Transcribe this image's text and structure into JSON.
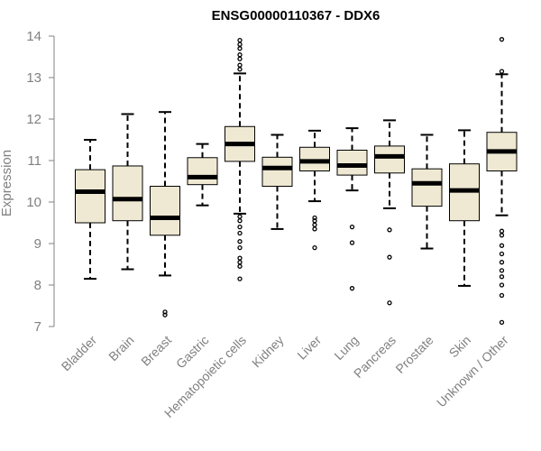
{
  "chart_data": {
    "type": "boxplot",
    "title": "ENSG00000110367 - DDX6",
    "xlabel": "",
    "ylabel": "Expression",
    "ylim": [
      7,
      14
    ],
    "yticks": [
      7,
      8,
      9,
      10,
      11,
      12,
      13,
      14
    ],
    "grid": false,
    "colors": {
      "box_fill": "#efe9d3",
      "box_stroke": "#000000",
      "axis": "#808080"
    },
    "categories": [
      "Bladder",
      "Brain",
      "Breast",
      "Gastric",
      "Hematopoietic cells",
      "Kidney",
      "Liver",
      "Lung",
      "Pancreas",
      "Prostate",
      "Skin",
      "Unknown / Other"
    ],
    "boxes": [
      {
        "name": "Bladder",
        "whisker_low": 8.15,
        "q1": 9.5,
        "median": 10.25,
        "q3": 10.78,
        "whisker_high": 11.5,
        "outliers": []
      },
      {
        "name": "Brain",
        "whisker_low": 8.38,
        "q1": 9.55,
        "median": 10.07,
        "q3": 10.87,
        "whisker_high": 12.12,
        "outliers": []
      },
      {
        "name": "Breast",
        "whisker_low": 8.23,
        "q1": 9.2,
        "median": 9.62,
        "q3": 10.38,
        "whisker_high": 12.17,
        "outliers": [
          7.28,
          7.35
        ]
      },
      {
        "name": "Gastric",
        "whisker_low": 9.92,
        "q1": 10.42,
        "median": 10.6,
        "q3": 11.07,
        "whisker_high": 11.4,
        "outliers": []
      },
      {
        "name": "Hematopoietic cells",
        "whisker_low": 9.72,
        "q1": 10.98,
        "median": 11.4,
        "q3": 11.82,
        "whisker_high": 13.1,
        "outliers": [
          8.15,
          8.45,
          8.55,
          8.65,
          8.9,
          9.05,
          9.25,
          9.4,
          9.55,
          9.65,
          13.2,
          13.3,
          13.45,
          13.55,
          13.7,
          13.8,
          13.9
        ]
      },
      {
        "name": "Kidney",
        "whisker_low": 9.35,
        "q1": 10.38,
        "median": 10.82,
        "q3": 11.08,
        "whisker_high": 11.62,
        "outliers": []
      },
      {
        "name": "Liver",
        "whisker_low": 10.02,
        "q1": 10.75,
        "median": 10.98,
        "q3": 11.32,
        "whisker_high": 11.72,
        "outliers": [
          8.9,
          9.35,
          9.45,
          9.55,
          9.62
        ]
      },
      {
        "name": "Lung",
        "whisker_low": 10.28,
        "q1": 10.65,
        "median": 10.88,
        "q3": 11.25,
        "whisker_high": 11.78,
        "outliers": [
          7.92,
          9.02,
          9.4
        ]
      },
      {
        "name": "Pancreas",
        "whisker_low": 9.85,
        "q1": 10.7,
        "median": 11.1,
        "q3": 11.35,
        "whisker_high": 11.97,
        "outliers": [
          7.57,
          8.67,
          9.33
        ]
      },
      {
        "name": "Prostate",
        "whisker_low": 8.88,
        "q1": 9.9,
        "median": 10.45,
        "q3": 10.8,
        "whisker_high": 11.62,
        "outliers": []
      },
      {
        "name": "Skin",
        "whisker_low": 7.98,
        "q1": 9.55,
        "median": 10.28,
        "q3": 10.92,
        "whisker_high": 11.73,
        "outliers": []
      },
      {
        "name": "Unknown / Other",
        "whisker_low": 9.68,
        "q1": 10.75,
        "median": 11.22,
        "q3": 11.68,
        "whisker_high": 13.08,
        "outliers": [
          7.1,
          7.75,
          8.0,
          8.2,
          8.35,
          8.55,
          8.75,
          8.95,
          9.2,
          9.3,
          13.15,
          13.92
        ]
      }
    ]
  }
}
